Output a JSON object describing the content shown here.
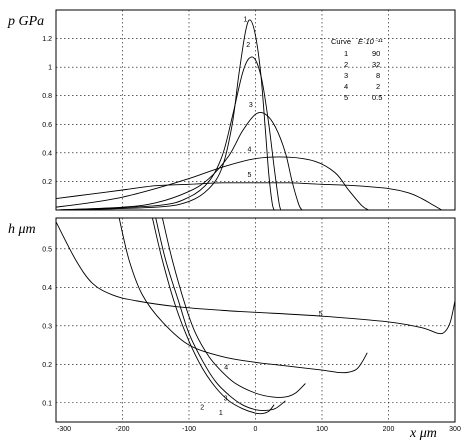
{
  "chart_data": [
    {
      "type": "line",
      "ylabel": "p GPa",
      "xlim": [
        -300,
        300
      ],
      "ylim": [
        0,
        1.4
      ],
      "xticks": [
        -300,
        -200,
        -100,
        0,
        100,
        200,
        300
      ],
      "yticks": [
        0.2,
        0.4,
        0.6,
        0.8,
        1,
        1.2
      ],
      "ytick_labels": [
        "0.2",
        "0.4",
        "0.6",
        "0.8",
        "1",
        "1.2"
      ],
      "grid": true,
      "legend": {
        "position": "top-right",
        "header_curve": "Curve",
        "header_value": "E·10⁻¹¹",
        "rows": [
          {
            "curve": "1",
            "value": "90"
          },
          {
            "curve": "2",
            "value": "32"
          },
          {
            "curve": "3",
            "value": "8"
          },
          {
            "curve": "4",
            "value": "2"
          },
          {
            "curve": "5",
            "value": "0.5"
          }
        ]
      },
      "series": [
        {
          "name": "1",
          "label_at": [
            -18,
            1.32
          ],
          "points": [
            [
              -300,
              0
            ],
            [
              -150,
              0.02
            ],
            [
              -100,
              0.06
            ],
            [
              -70,
              0.15
            ],
            [
              -50,
              0.3
            ],
            [
              -35,
              0.6
            ],
            [
              -25,
              0.95
            ],
            [
              -15,
              1.25
            ],
            [
              -8,
              1.33
            ],
            [
              0,
              1.22
            ],
            [
              8,
              0.95
            ],
            [
              15,
              0.55
            ],
            [
              20,
              0.25
            ],
            [
              25,
              0.05
            ],
            [
              28,
              0
            ]
          ]
        },
        {
          "name": "2",
          "label_at": [
            -14,
            1.14
          ],
          "points": [
            [
              -300,
              0
            ],
            [
              -150,
              0.03
            ],
            [
              -100,
              0.09
            ],
            [
              -70,
              0.2
            ],
            [
              -50,
              0.38
            ],
            [
              -35,
              0.65
            ],
            [
              -20,
              0.95
            ],
            [
              -10,
              1.06
            ],
            [
              0,
              1.05
            ],
            [
              10,
              0.9
            ],
            [
              20,
              0.6
            ],
            [
              28,
              0.3
            ],
            [
              35,
              0.06
            ],
            [
              38,
              0
            ]
          ]
        },
        {
          "name": "3",
          "label_at": [
            -10,
            0.72
          ],
          "points": [
            [
              -300,
              0
            ],
            [
              -200,
              0.02
            ],
            [
              -150,
              0.05
            ],
            [
              -100,
              0.13
            ],
            [
              -70,
              0.22
            ],
            [
              -40,
              0.38
            ],
            [
              -20,
              0.55
            ],
            [
              0,
              0.67
            ],
            [
              15,
              0.67
            ],
            [
              30,
              0.58
            ],
            [
              45,
              0.4
            ],
            [
              55,
              0.2
            ],
            [
              65,
              0.04
            ],
            [
              70,
              0
            ]
          ]
        },
        {
          "name": "4",
          "label_at": [
            -12,
            0.41
          ],
          "points": [
            [
              -300,
              0.02
            ],
            [
              -250,
              0.05
            ],
            [
              -200,
              0.09
            ],
            [
              -150,
              0.15
            ],
            [
              -100,
              0.22
            ],
            [
              -50,
              0.3
            ],
            [
              0,
              0.36
            ],
            [
              50,
              0.37
            ],
            [
              90,
              0.34
            ],
            [
              120,
              0.26
            ],
            [
              140,
              0.14
            ],
            [
              160,
              0.03
            ],
            [
              170,
              0
            ]
          ]
        },
        {
          "name": "5",
          "label_at": [
            -12,
            0.23
          ],
          "points": [
            [
              -300,
              0.08
            ],
            [
              -250,
              0.11
            ],
            [
              -200,
              0.14
            ],
            [
              -150,
              0.17
            ],
            [
              -100,
              0.18
            ],
            [
              -50,
              0.19
            ],
            [
              0,
              0.19
            ],
            [
              50,
              0.19
            ],
            [
              100,
              0.18
            ],
            [
              150,
              0.17
            ],
            [
              200,
              0.15
            ],
            [
              230,
              0.12
            ],
            [
              250,
              0.08
            ],
            [
              265,
              0.04
            ],
            [
              280,
              0
            ]
          ]
        }
      ]
    },
    {
      "type": "line",
      "ylabel": "h μm",
      "xlabel": "x μm",
      "xlim": [
        -300,
        300
      ],
      "ylim": [
        0.05,
        0.58
      ],
      "xticks": [
        -300,
        -200,
        -100,
        0,
        100,
        200,
        300
      ],
      "xtick_labels": [
        "-300",
        "-200",
        "-100",
        "0",
        "100",
        "200",
        "300"
      ],
      "yticks": [
        0.1,
        0.2,
        0.3,
        0.4,
        0.5
      ],
      "ytick_labels": [
        "0.1",
        "0.2",
        "0.3",
        "0.4",
        "0.5"
      ],
      "grid": true,
      "series": [
        {
          "name": "1",
          "label_at": [
            -55,
            0.068
          ],
          "points": [
            [
              -155,
              0.58
            ],
            [
              -140,
              0.47
            ],
            [
              -120,
              0.35
            ],
            [
              -100,
              0.26
            ],
            [
              -80,
              0.19
            ],
            [
              -60,
              0.14
            ],
            [
              -40,
              0.105
            ],
            [
              -20,
              0.085
            ],
            [
              0,
              0.073
            ],
            [
              10,
              0.072
            ],
            [
              20,
              0.078
            ],
            [
              28,
              0.095
            ]
          ]
        },
        {
          "name": "2",
          "label_at": [
            -83,
            0.083
          ],
          "points": [
            [
              -150,
              0.58
            ],
            [
              -135,
              0.47
            ],
            [
              -115,
              0.36
            ],
            [
              -100,
              0.28
            ],
            [
              -80,
              0.21
            ],
            [
              -60,
              0.155
            ],
            [
              -40,
              0.12
            ],
            [
              -20,
              0.095
            ],
            [
              0,
              0.082
            ],
            [
              15,
              0.08
            ],
            [
              30,
              0.085
            ],
            [
              45,
              0.105
            ]
          ]
        },
        {
          "name": "3",
          "label_at": [
            -48,
            0.106
          ],
          "points": [
            [
              -140,
              0.58
            ],
            [
              -125,
              0.47
            ],
            [
              -105,
              0.35
            ],
            [
              -90,
              0.28
            ],
            [
              -70,
              0.22
            ],
            [
              -50,
              0.18
            ],
            [
              -30,
              0.15
            ],
            [
              0,
              0.125
            ],
            [
              25,
              0.115
            ],
            [
              45,
              0.115
            ],
            [
              60,
              0.125
            ],
            [
              75,
              0.15
            ]
          ]
        },
        {
          "name": "4",
          "label_at": [
            -47,
            0.187
          ],
          "points": [
            [
              -205,
              0.58
            ],
            [
              -190,
              0.47
            ],
            [
              -170,
              0.38
            ],
            [
              -140,
              0.31
            ],
            [
              -100,
              0.25
            ],
            [
              -50,
              0.22
            ],
            [
              0,
              0.205
            ],
            [
              50,
              0.195
            ],
            [
              100,
              0.185
            ],
            [
              130,
              0.178
            ],
            [
              150,
              0.185
            ],
            [
              160,
              0.205
            ],
            [
              168,
              0.23
            ]
          ]
        },
        {
          "name": "5",
          "label_at": [
            95,
            0.325
          ],
          "points": [
            [
              -300,
              0.57
            ],
            [
              -270,
              0.47
            ],
            [
              -245,
              0.41
            ],
            [
              -215,
              0.38
            ],
            [
              -180,
              0.365
            ],
            [
              -120,
              0.35
            ],
            [
              -50,
              0.34
            ],
            [
              0,
              0.335
            ],
            [
              100,
              0.325
            ],
            [
              200,
              0.31
            ],
            [
              250,
              0.295
            ],
            [
              275,
              0.28
            ],
            [
              285,
              0.285
            ],
            [
              293,
              0.31
            ],
            [
              300,
              0.365
            ]
          ]
        }
      ]
    }
  ]
}
